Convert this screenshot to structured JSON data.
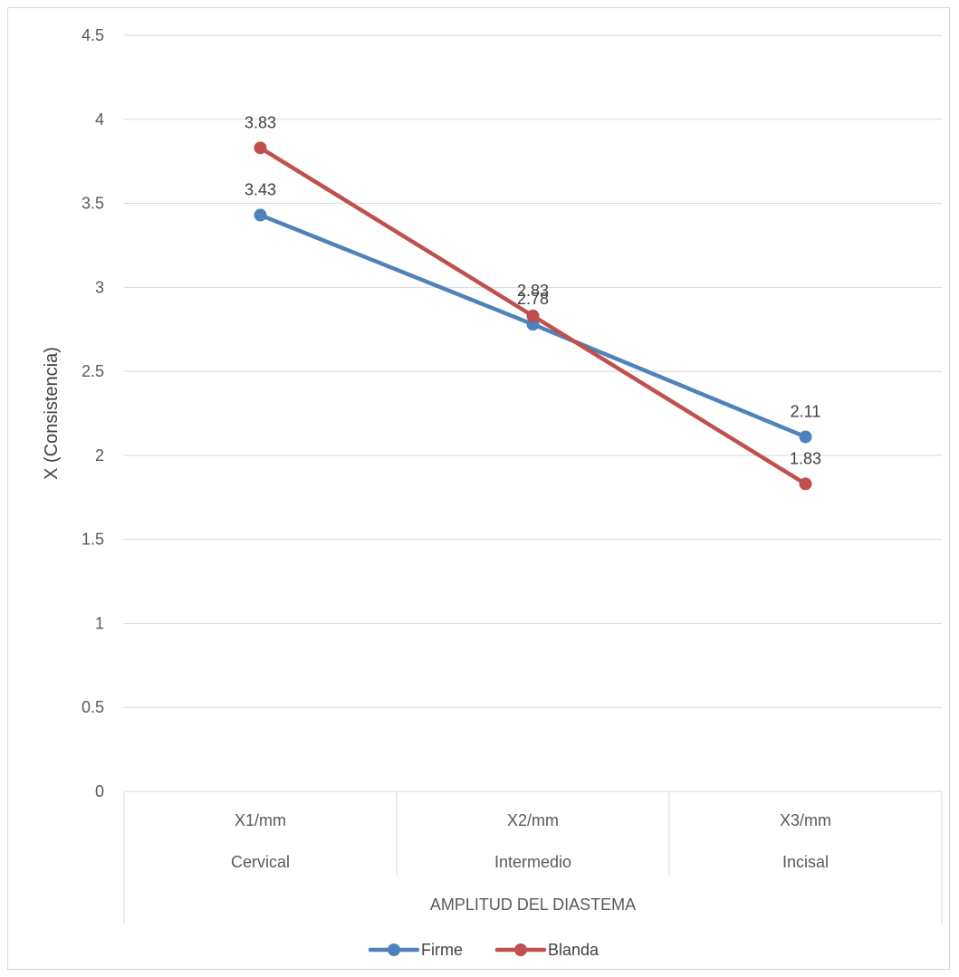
{
  "chart_data": {
    "type": "line",
    "ylabel": "X (Consistencia)",
    "xlabel": "AMPLITUD DEL DIASTEMA",
    "ylim": [
      0,
      4.5
    ],
    "y_ticks": [
      "0",
      "0.5",
      "1",
      "1.5",
      "2",
      "2.5",
      "3",
      "3.5",
      "4",
      "4.5"
    ],
    "y_tick_values": [
      0,
      0.5,
      1,
      1.5,
      2,
      2.5,
      3,
      3.5,
      4,
      4.5
    ],
    "categories": [
      {
        "top": "X1/mm",
        "bottom": "Cervical"
      },
      {
        "top": "X2/mm",
        "bottom": "Intermedio"
      },
      {
        "top": "X3/mm",
        "bottom": "Incisal"
      }
    ],
    "series": [
      {
        "name": "Firme",
        "color": "#4f81bd",
        "values": [
          3.43,
          2.78,
          2.11
        ],
        "labels": [
          "3.43",
          "2.78",
          "2.11"
        ]
      },
      {
        "name": "Blanda",
        "color": "#c0504d",
        "values": [
          3.83,
          2.83,
          1.83
        ],
        "labels": [
          "3.83",
          "2.83",
          "1.83"
        ]
      }
    ],
    "grid": true,
    "legend": "bottom"
  }
}
